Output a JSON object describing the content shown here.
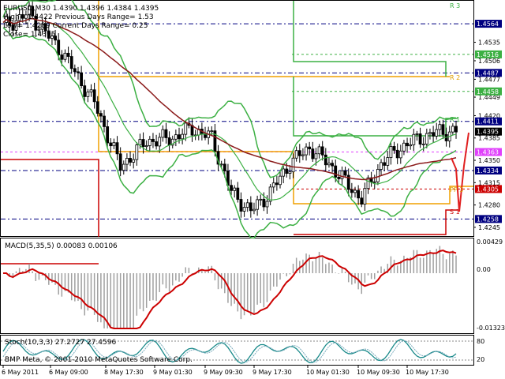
{
  "header": {
    "line1": "EURUSD,M30  1.4390 1.4396 1.4384 1.4395",
    "line2": "High= 1.4422   Previous Days Range= 1.53",
    "line3": "Low= 1.4289   Current Days Range= 0.25",
    "line4": "Close= 1.4395"
  },
  "price_axis": {
    "ticks": [
      "1.4535",
      "1.4506",
      "1.4477",
      "1.4449",
      "1.4420",
      "1.4385",
      "1.4350",
      "1.4315",
      "1.4280",
      "1.4245"
    ]
  },
  "price_labels": [
    {
      "text": "1.4564",
      "color": "#ffffff",
      "bg": "#000080",
      "price": 1.4564
    },
    {
      "text": "1.4516",
      "color": "#ffffff",
      "bg": "#3cb043",
      "price": 1.4516
    },
    {
      "text": "1.4487",
      "color": "#ffffff",
      "bg": "#000080",
      "price": 1.4487
    },
    {
      "text": "1.4458",
      "color": "#ffffff",
      "bg": "#3cb043",
      "price": 1.4458
    },
    {
      "text": "1.4411",
      "color": "#ffffff",
      "bg": "#000080",
      "price": 1.4411
    },
    {
      "text": "1.4395",
      "color": "#ffffff",
      "bg": "#000000",
      "price": 1.4395
    },
    {
      "text": "1.4363",
      "color": "#ffffff",
      "bg": "#e040fb",
      "price": 1.4363
    },
    {
      "text": "1.4334",
      "color": "#ffffff",
      "bg": "#000080",
      "price": 1.4334
    },
    {
      "text": "1.4305",
      "color": "#ffffff",
      "bg": "#cc0000",
      "price": 1.4305
    },
    {
      "text": "1.4258",
      "color": "#ffffff",
      "bg": "#000080",
      "price": 1.4258
    }
  ],
  "pivot_labels": {
    "r3": "R 3",
    "r2": "R 2",
    "r1": "R 1",
    "pp": "PP 3",
    "s1": "S 1"
  },
  "macd": {
    "label": "MACD(5,35,5) 0.00083 0.00106",
    "ticks": [
      "0.00429",
      "0.00",
      "-0.01323"
    ]
  },
  "stoch": {
    "label": "Stoch(10,3,3) 27.2727 27.4596",
    "ticks": [
      "80",
      "20"
    ]
  },
  "copyright": "BMP Meta, © 2001-2010 MetaQuotes Software Corp.",
  "time_axis": [
    "6 May 2011",
    "6 May 09:00",
    "8 May 17:30",
    "9 May 01:30",
    "9 May 09:30",
    "9 May 17:30",
    "10 May 01:30",
    "10 May 09:30",
    "10 May 17:30"
  ],
  "colors": {
    "bull_candle": "#000000",
    "bear_candle": "#000000",
    "bollinger": "#3cb043",
    "ma": "#8b1a1a",
    "resistance": "#3cb043",
    "pivot": "#f0a000",
    "support": "#cc0000",
    "grid_dash": "#000080",
    "macd_line": "#cc0000",
    "stoch_line": "#1a8a8a"
  }
}
